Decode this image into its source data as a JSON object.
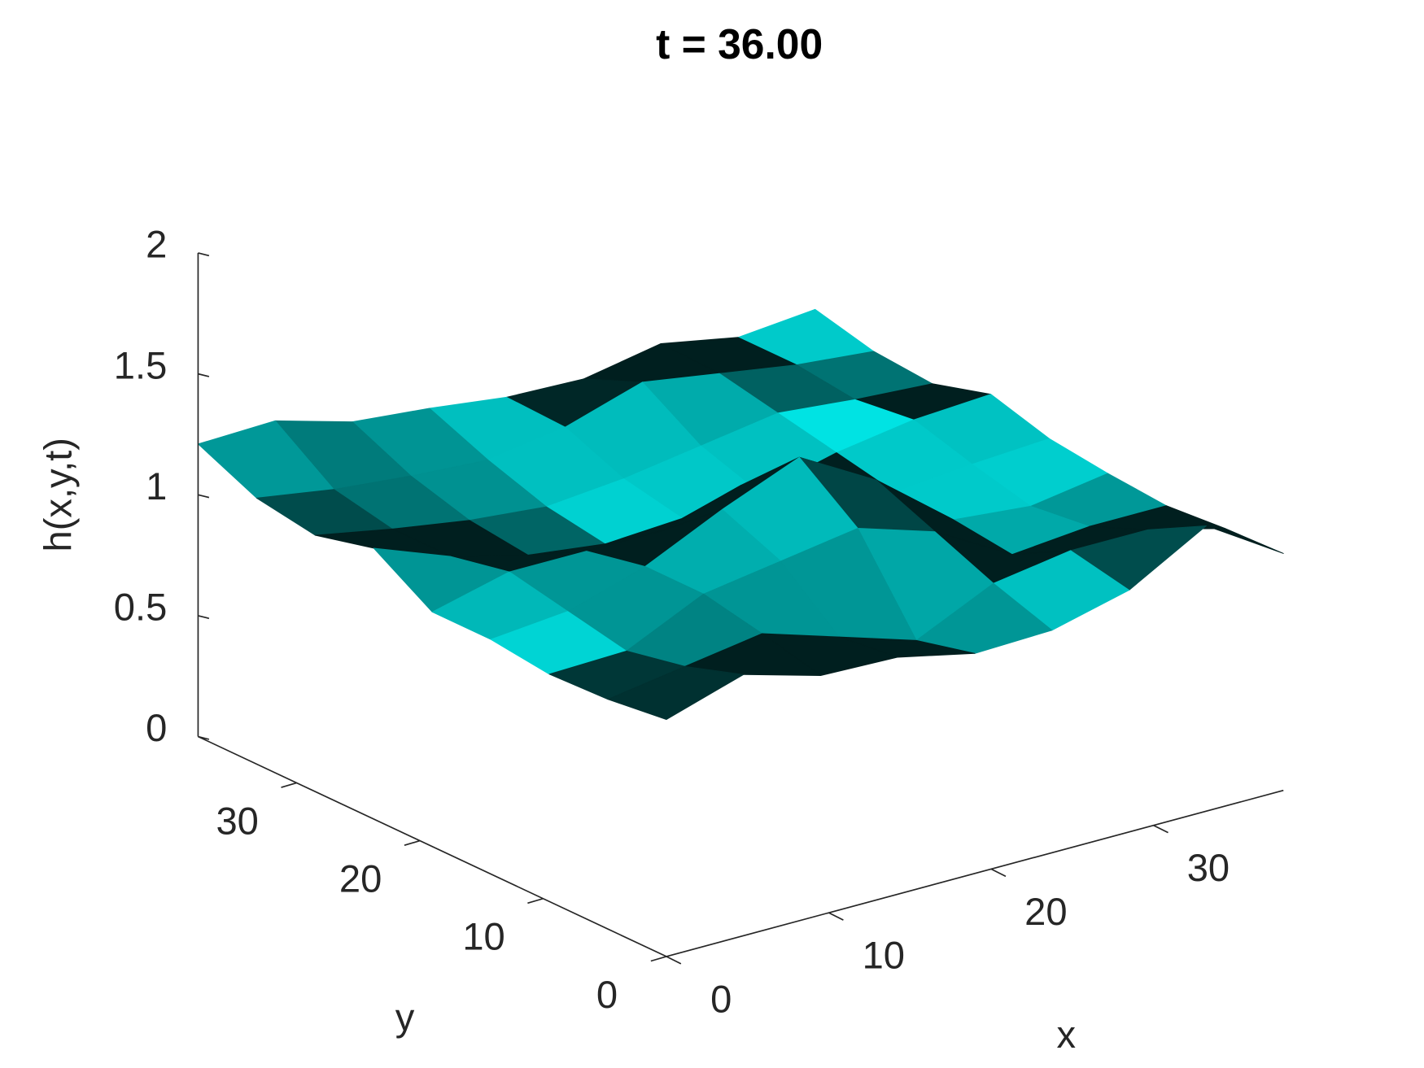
{
  "chart_data": {
    "type": "surface",
    "title": "t = 36.00",
    "xlabel": "x",
    "ylabel": "y",
    "zlabel": "h(x,y,t)",
    "color": "#00ffff",
    "x": [
      0,
      4.75,
      9.5,
      14.25,
      19,
      23.75,
      28.5,
      33.25,
      38
    ],
    "y": [
      0,
      4.75,
      9.5,
      14.25,
      19,
      23.75,
      28.5,
      33.25,
      38
    ],
    "z": [
      [
        0.98,
        1.08,
        0.99,
        0.98,
        0.91,
        0.92,
        1.0,
        1.18,
        0.98
      ],
      [
        0.95,
        1.0,
        1.05,
        0.95,
        0.85,
        1.0,
        1.05,
        1.05,
        0.97
      ],
      [
        0.94,
        0.95,
        1.1,
        1.15,
        1.2,
        1.1,
        0.92,
        0.95,
        0.95
      ],
      [
        0.97,
        1.0,
        1.1,
        1.25,
        1.38,
        1.2,
        0.95,
        0.92,
        0.97
      ],
      [
        0.97,
        1.05,
        1.05,
        1.05,
        1.15,
        1.05,
        0.95,
        0.98,
        1.0
      ],
      [
        1.12,
        1.0,
        0.92,
        0.88,
        0.9,
        0.92,
        1.0,
        1.05,
        1.07
      ],
      [
        1.06,
        1.0,
        0.95,
        0.92,
        0.95,
        1.0,
        1.05,
        1.02,
        1.0
      ],
      [
        1.1,
        1.05,
        1.02,
        1.0,
        1.05,
        1.15,
        1.1,
        1.05,
        1.02
      ],
      [
        1.21,
        1.22,
        1.13,
        1.1,
        1.06,
        1.05,
        1.11,
        1.05,
        1.08
      ]
    ],
    "xlim": [
      0,
      38
    ],
    "ylim": [
      0,
      38
    ],
    "zlim": [
      0,
      2
    ],
    "xticks": [
      0,
      10,
      20,
      30
    ],
    "yticks": [
      0,
      10,
      20,
      30
    ],
    "zticks": [
      0,
      0.5,
      1,
      1.5,
      2
    ],
    "grid": false
  }
}
